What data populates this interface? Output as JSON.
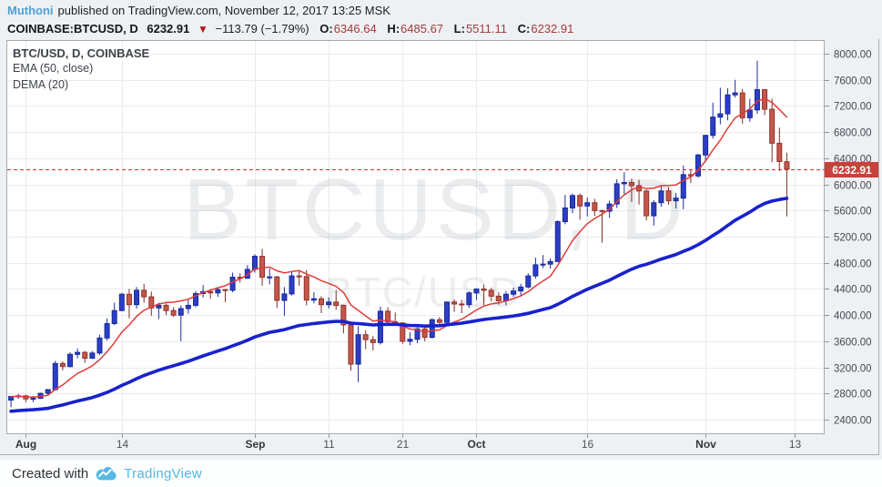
{
  "header": {
    "author": "Muthoni",
    "published": "published on TradingView.com, November 12, 2017 13:25 MSK",
    "quote": {
      "symbol": "COINBASE:BTCUSD, D",
      "price": "6232.91",
      "direction_icon": "▼",
      "change": "−113.79 (−1.79%)",
      "o_label": "O:",
      "o": "6346.64",
      "h_label": "H:",
      "h": "6485.67",
      "l_label": "L:",
      "l": "5511.11",
      "c_label": "C:",
      "c": "6232.91"
    }
  },
  "legend": {
    "symbol": "BTC/USD, D, COINBASE",
    "ema": "EMA (50, close)",
    "dema": "DEMA (20)"
  },
  "watermark": {
    "line1": "BTCUSD, D",
    "line2": "BTC/USD"
  },
  "footer": {
    "created_with": "Created with",
    "brand": "TradingView",
    "logo": "tradingview-cloud-logo"
  },
  "colors": {
    "page_bg": "#eef1f4",
    "plot_bg": "#ffffff",
    "grid": "#e9ebee",
    "plot_border": "#a6abb1",
    "up_fill": "#2b3ec4",
    "up_border": "#18299b",
    "up_wick": "#1f2d9e",
    "down_fill": "#c6564b",
    "down_border": "#8f332b",
    "down_wick": "#7c2f27",
    "ema_line": "#1822cb",
    "dema_line": "#e23b36",
    "last_price_line": "#cc3232",
    "last_price_bg": "#c9413b",
    "last_price_text": "#ffffff",
    "axis_text": "#454a52",
    "watermark": "#8a949e",
    "author_link": "#4fa0d2",
    "brand": "#53b7e8"
  },
  "chart_data": {
    "type": "candlestick",
    "symbol": "BTC/USD",
    "exchange": "COINBASE",
    "interval": "D",
    "title": "BTC/USD, D, COINBASE",
    "ylim": [
      2192,
      8195
    ],
    "grid": true,
    "last_price": 6232.91,
    "price_ticks": [
      2400,
      2800,
      3200,
      3600,
      4000,
      4400,
      4800,
      5200,
      5600,
      6000,
      6400,
      6800,
      7200,
      7600,
      8000
    ],
    "time_ticks": [
      {
        "index": 2,
        "label": "Aug",
        "month": true
      },
      {
        "index": 15,
        "label": "14"
      },
      {
        "index": 33,
        "label": "Sep",
        "month": true
      },
      {
        "index": 43,
        "label": "11"
      },
      {
        "index": 53,
        "label": "21"
      },
      {
        "index": 63,
        "label": "Oct",
        "month": true
      },
      {
        "index": 78,
        "label": "16"
      },
      {
        "index": 94,
        "label": "Nov",
        "month": true
      },
      {
        "index": 106,
        "label": "13"
      }
    ],
    "layout": {
      "slots": 110.5,
      "legend_position": "top-left"
    },
    "columns": [
      "date",
      "open",
      "high",
      "low",
      "close"
    ],
    "candles": [
      [
        "Jul 30",
        2700,
        2760,
        2590,
        2755
      ],
      [
        "Jul 31",
        2755,
        2795,
        2720,
        2765
      ],
      [
        "Aug 1",
        2765,
        2780,
        2670,
        2718
      ],
      [
        "Aug 2",
        2718,
        2762,
        2668,
        2727
      ],
      [
        "Aug 3",
        2727,
        2813,
        2720,
        2804
      ],
      [
        "Aug 4",
        2804,
        2870,
        2780,
        2860
      ],
      [
        "Aug 5",
        2860,
        3300,
        2850,
        3260
      ],
      [
        "Aug 6",
        3260,
        3295,
        3155,
        3213
      ],
      [
        "Aug 7",
        3213,
        3430,
        3200,
        3400
      ],
      [
        "Aug 8",
        3400,
        3490,
        3340,
        3430
      ],
      [
        "Aug 9",
        3430,
        3450,
        3270,
        3340
      ],
      [
        "Aug 10",
        3340,
        3450,
        3330,
        3420
      ],
      [
        "Aug 11",
        3420,
        3700,
        3390,
        3650
      ],
      [
        "Aug 12",
        3650,
        3950,
        3610,
        3870
      ],
      [
        "Aug 13",
        3870,
        4190,
        3850,
        4070
      ],
      [
        "Aug 14",
        4070,
        4340,
        4060,
        4320
      ],
      [
        "Aug 15",
        4320,
        4400,
        3950,
        4160
      ],
      [
        "Aug 16",
        4160,
        4430,
        4100,
        4380
      ],
      [
        "Aug 17",
        4380,
        4480,
        4190,
        4280
      ],
      [
        "Aug 18",
        4280,
        4360,
        3990,
        4110
      ],
      [
        "Aug 19",
        4110,
        4190,
        3940,
        4150
      ],
      [
        "Aug 20",
        4150,
        4190,
        4000,
        4070
      ],
      [
        "Aug 21",
        4070,
        4120,
        3970,
        4000
      ],
      [
        "Aug 22",
        4000,
        4150,
        3600,
        4100
      ],
      [
        "Aug 23",
        4100,
        4250,
        4020,
        4150
      ],
      [
        "Aug 24",
        4150,
        4370,
        4120,
        4330
      ],
      [
        "Aug 25",
        4330,
        4460,
        4270,
        4360
      ],
      [
        "Aug 26",
        4360,
        4400,
        4250,
        4340
      ],
      [
        "Aug 27",
        4340,
        4410,
        4280,
        4390
      ],
      [
        "Aug 28",
        4390,
        4400,
        4200,
        4380
      ],
      [
        "Aug 29",
        4380,
        4650,
        4350,
        4580
      ],
      [
        "Aug 30",
        4580,
        4640,
        4500,
        4565
      ],
      [
        "Aug 31",
        4565,
        4765,
        4555,
        4700
      ],
      [
        "Sep 1",
        4700,
        4930,
        4650,
        4900
      ],
      [
        "Sep 2",
        4900,
        5014,
        4450,
        4580
      ],
      [
        "Sep 3",
        4580,
        4715,
        4470,
        4585
      ],
      [
        "Sep 4",
        4585,
        4600,
        4110,
        4225
      ],
      [
        "Sep 5",
        4225,
        4430,
        3990,
        4325
      ],
      [
        "Sep 6",
        4325,
        4660,
        4300,
        4600
      ],
      [
        "Sep 7",
        4600,
        4670,
        4450,
        4590
      ],
      [
        "Sep 8",
        4590,
        4690,
        4150,
        4230
      ],
      [
        "Sep 9",
        4230,
        4350,
        4180,
        4250
      ],
      [
        "Sep 10",
        4250,
        4290,
        4030,
        4160
      ],
      [
        "Sep 11",
        4160,
        4270,
        4100,
        4200
      ],
      [
        "Sep 12",
        4200,
        4380,
        4080,
        4150
      ],
      [
        "Sep 13",
        4150,
        4160,
        3720,
        3850
      ],
      [
        "Sep 14",
        3850,
        3880,
        3150,
        3250
      ],
      [
        "Sep 15",
        3250,
        3830,
        2975,
        3700
      ],
      [
        "Sep 16",
        3700,
        3770,
        3480,
        3625
      ],
      [
        "Sep 17",
        3625,
        3680,
        3460,
        3580
      ],
      [
        "Sep 18",
        3580,
        4130,
        3550,
        4060
      ],
      [
        "Sep 19",
        4060,
        4120,
        3850,
        3900
      ],
      [
        "Sep 20",
        3900,
        4040,
        3850,
        3880
      ],
      [
        "Sep 21",
        3880,
        3890,
        3560,
        3600
      ],
      [
        "Sep 22",
        3600,
        3740,
        3540,
        3630
      ],
      [
        "Sep 23",
        3630,
        3840,
        3570,
        3790
      ],
      [
        "Sep 24",
        3790,
        3810,
        3600,
        3660
      ],
      [
        "Sep 25",
        3660,
        3950,
        3640,
        3930
      ],
      [
        "Sep 26",
        3930,
        3970,
        3820,
        3890
      ],
      [
        "Sep 27",
        3890,
        4210,
        3870,
        4200
      ],
      [
        "Sep 28",
        4200,
        4240,
        4050,
        4170
      ],
      [
        "Sep 29",
        4170,
        4230,
        4030,
        4160
      ],
      [
        "Sep 30",
        4160,
        4360,
        4110,
        4340
      ],
      [
        "Oct 1",
        4340,
        4410,
        4230,
        4400
      ],
      [
        "Oct 2",
        4400,
        4470,
        4150,
        4380
      ],
      [
        "Oct 3",
        4380,
        4420,
        4210,
        4290
      ],
      [
        "Oct 4",
        4290,
        4350,
        4160,
        4220
      ],
      [
        "Oct 5",
        4220,
        4370,
        4150,
        4320
      ],
      [
        "Oct 6",
        4320,
        4420,
        4280,
        4370
      ],
      [
        "Oct 7",
        4370,
        4480,
        4290,
        4430
      ],
      [
        "Oct 8",
        4430,
        4640,
        4410,
        4600
      ],
      [
        "Oct 9",
        4600,
        4880,
        4560,
        4770
      ],
      [
        "Oct 10",
        4770,
        4920,
        4720,
        4780
      ],
      [
        "Oct 11",
        4780,
        4870,
        4710,
        4820
      ],
      [
        "Oct 12",
        4820,
        5450,
        4810,
        5430
      ],
      [
        "Oct 13",
        5430,
        5840,
        5390,
        5640
      ],
      [
        "Oct 14",
        5640,
        5860,
        5560,
        5830
      ],
      [
        "Oct 15",
        5830,
        5860,
        5460,
        5670
      ],
      [
        "Oct 16",
        5670,
        5800,
        5510,
        5720
      ],
      [
        "Oct 17",
        5720,
        5780,
        5520,
        5600
      ],
      [
        "Oct 18",
        5600,
        5610,
        5110,
        5590
      ],
      [
        "Oct 19",
        5590,
        5750,
        5490,
        5700
      ],
      [
        "Oct 20",
        5700,
        6080,
        5640,
        6010
      ],
      [
        "Oct 21",
        6010,
        6190,
        5850,
        6030
      ],
      [
        "Oct 22",
        6030,
        6090,
        5730,
        5980
      ],
      [
        "Oct 23",
        5980,
        6070,
        5690,
        5900
      ],
      [
        "Oct 24",
        5900,
        5920,
        5450,
        5520
      ],
      [
        "Oct 25",
        5520,
        5760,
        5370,
        5720
      ],
      [
        "Oct 26",
        5720,
        5980,
        5660,
        5900
      ],
      [
        "Oct 27",
        5900,
        5960,
        5690,
        5750
      ],
      [
        "Oct 28",
        5750,
        5870,
        5630,
        5790
      ],
      [
        "Oct 29",
        5790,
        6290,
        5620,
        6150
      ],
      [
        "Oct 30",
        6150,
        6230,
        6020,
        6130
      ],
      [
        "Oct 31",
        6130,
        6470,
        6100,
        6450
      ],
      [
        "Nov 1",
        6450,
        6760,
        6360,
        6750
      ],
      [
        "Nov 2",
        6750,
        7250,
        6700,
        7030
      ],
      [
        "Nov 3",
        7030,
        7480,
        6920,
        7080
      ],
      [
        "Nov 4",
        7080,
        7470,
        6980,
        7370
      ],
      [
        "Nov 5",
        7370,
        7600,
        7330,
        7400
      ],
      [
        "Nov 6",
        7400,
        7460,
        6930,
        7020
      ],
      [
        "Nov 7",
        7020,
        7310,
        6960,
        7140
      ],
      [
        "Nov 8",
        7140,
        7890,
        7080,
        7450
      ],
      [
        "Nov 9",
        7450,
        7460,
        7060,
        7150
      ],
      [
        "Nov 10",
        7150,
        7310,
        6340,
        6630
      ],
      [
        "Nov 11",
        6630,
        6870,
        6210,
        6350
      ],
      [
        "Nov 12",
        6346.64,
        6485.67,
        5511.11,
        6232.91
      ]
    ],
    "indicators": [
      {
        "name": "DEMA (20)",
        "type": "dema",
        "period": 20,
        "color": "#e23b36",
        "width": 1.5
      },
      {
        "name": "EMA (50, close)",
        "type": "ema",
        "period": 50,
        "seed": 2520,
        "color": "#1822cb",
        "width": 3.6
      }
    ]
  }
}
